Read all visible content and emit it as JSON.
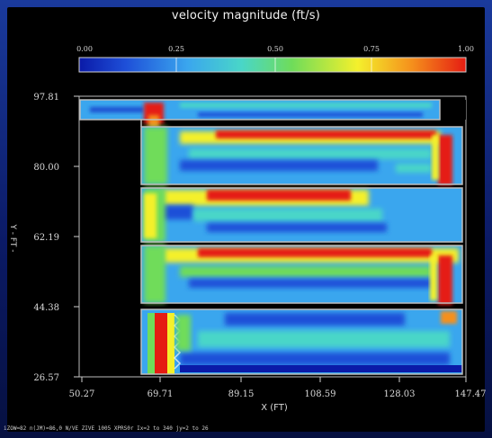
{
  "chart_data": {
    "type": "heatmap",
    "title": "velocity magnitude (ft/s)",
    "colorbar": {
      "min": 0.0,
      "max": 1.0,
      "tick_labels": [
        "0.00",
        "0.25",
        "0.50",
        "0.75",
        "1.00"
      ],
      "colormap": "jet (blue → cyan → green → yellow → red)"
    },
    "xlabel": "X  (FT)",
    "ylabel": "Y - FT -",
    "x_tick_labels": [
      "50.27",
      "69.71",
      "89.15",
      "108.59",
      "128.03",
      "147.47"
    ],
    "y_tick_labels": [
      "97.81",
      "80.00",
      "62.19",
      "44.38",
      "26.57"
    ],
    "xlim": [
      50.27,
      147.47
    ],
    "ylim": [
      26.57,
      97.81
    ],
    "description_of_field": "Serpentine flow through 4 stacked channels; high-velocity (red) jets along channel edges and at bends near x≈145"
  },
  "footer": "iZOW=82 n(JM)=86,0 N/VE ZIVE 1005 XPRS0r  Ix=2 to 340  jy=2 to 26"
}
